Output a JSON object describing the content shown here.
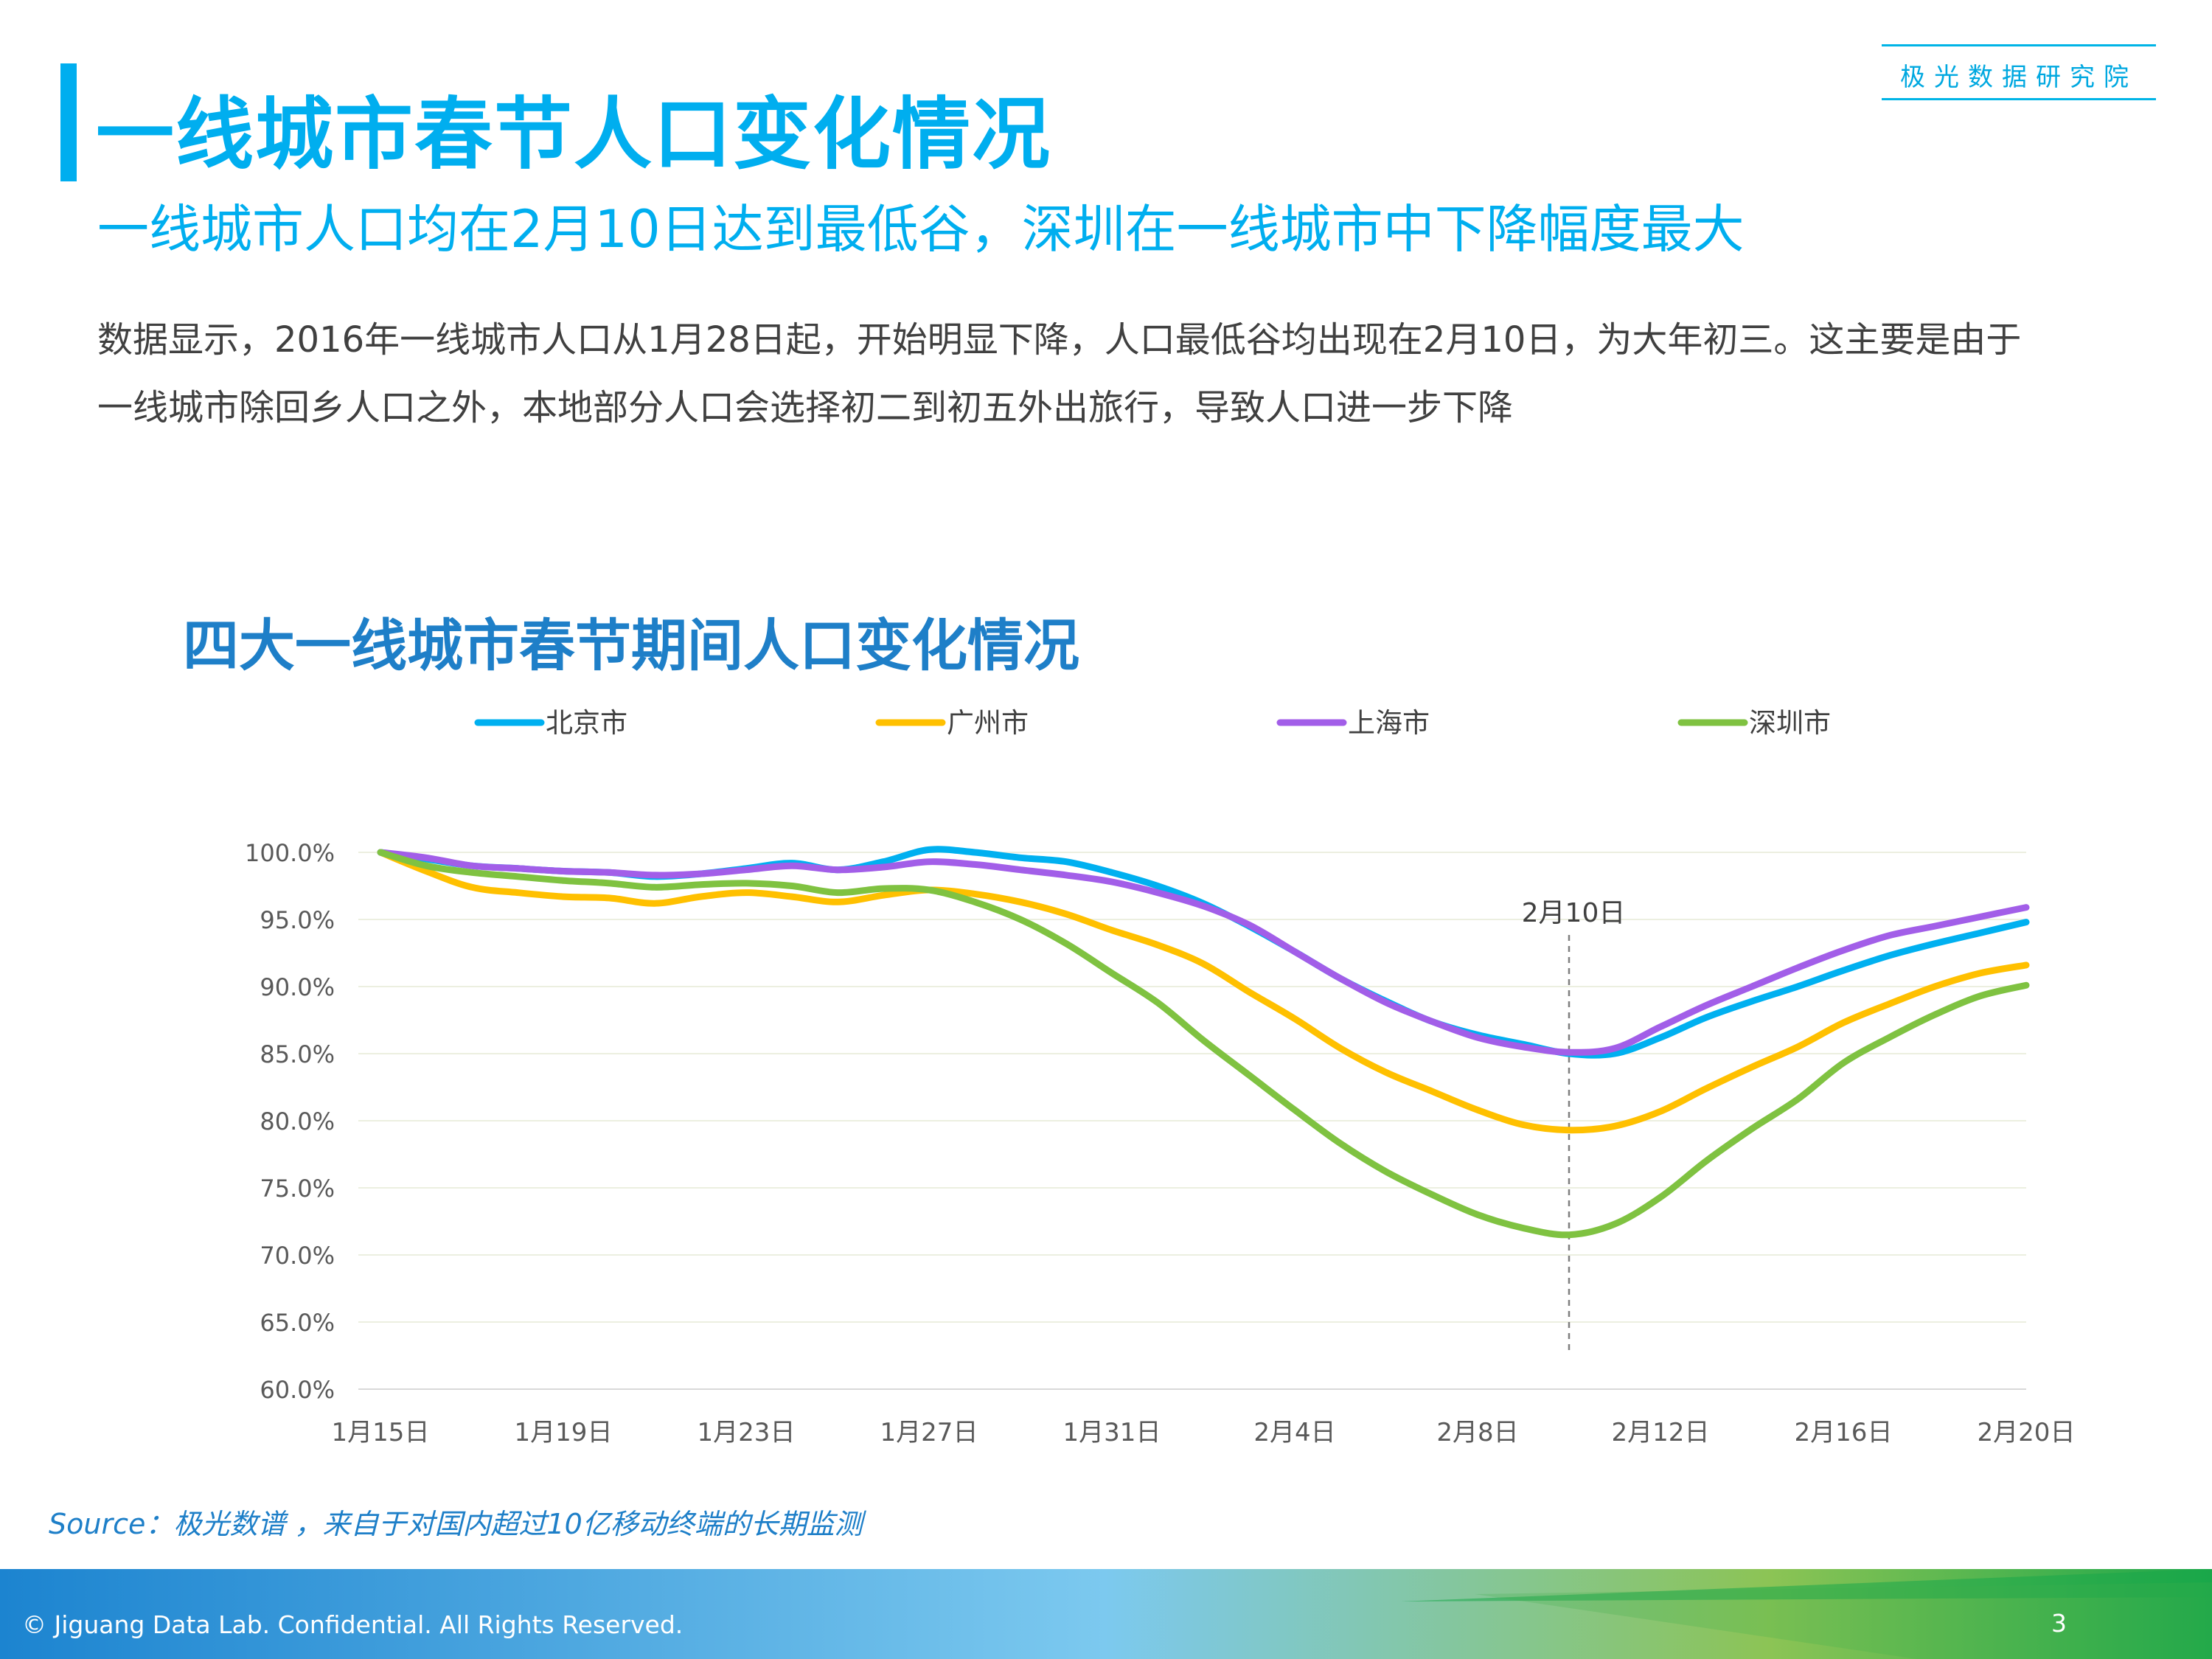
{
  "brand": "极光数据研究院",
  "title": "一线城市春节人口变化情况",
  "subtitle": "一线城市人口均在2月10日达到最低谷，深圳在一线城市中下降幅度最大",
  "body_lines": [
    "数据显示，2016年一线城市人口从1月28日起，开始明显下降，人口最低谷均出现在2月10日，为大年初三。这主要是由于",
    "一线城市除回乡人口之外，本地部分人口会选择初二到初五外出旅行，导致人口进一步下降"
  ],
  "source": "Source：极光数谱 ，来自于对国内超过10亿移动终端的长期监测",
  "footer": "© Jiguang Data Lab. Confidential. All Rights Reserved.",
  "page_number": "3",
  "colors": {
    "accent": "#00aeef",
    "chart_title": "#1e7fc8"
  },
  "chart_data": {
    "type": "line",
    "title": "四大一线城市春节期间人口变化情况",
    "x": [
      "1月15日",
      "1月16日",
      "1月17日",
      "1月18日",
      "1月19日",
      "1月20日",
      "1月21日",
      "1月22日",
      "1月23日",
      "1月24日",
      "1月25日",
      "1月26日",
      "1月27日",
      "1月28日",
      "1月29日",
      "1月30日",
      "1月31日",
      "2月1日",
      "2月2日",
      "2月3日",
      "2月4日",
      "2月5日",
      "2月6日",
      "2月7日",
      "2月8日",
      "2月9日",
      "2月10日",
      "2月11日",
      "2月12日",
      "2月13日",
      "2月14日",
      "2月15日",
      "2月16日",
      "2月17日",
      "2月18日",
      "2月19日",
      "2月20日"
    ],
    "x_tick_labels": [
      "1月15日",
      "1月19日",
      "1月23日",
      "1月27日",
      "1月31日",
      "2月4日",
      "2月8日",
      "2月12日",
      "2月16日",
      "2月20日"
    ],
    "y_tick_labels": [
      "100.0%",
      "95.0%",
      "90.0%",
      "85.0%",
      "80.0%",
      "75.0%",
      "70.0%",
      "65.0%",
      "60.0%"
    ],
    "ylim": [
      60,
      100
    ],
    "y_unit": "%",
    "grid": true,
    "legend_position": "top",
    "series": [
      {
        "name": "北京市",
        "color": "#00b0f0",
        "values": [
          100.0,
          99.5,
          99.0,
          98.8,
          98.6,
          98.5,
          98.2,
          98.4,
          98.8,
          99.2,
          98.7,
          99.3,
          100.2,
          100.0,
          99.6,
          99.3,
          98.5,
          97.5,
          96.2,
          94.5,
          92.6,
          90.6,
          88.9,
          87.4,
          86.4,
          85.7,
          85.0,
          85.0,
          86.2,
          87.7,
          88.9,
          90.0,
          91.2,
          92.3,
          93.2,
          94.0,
          94.8
        ]
      },
      {
        "name": "广州市",
        "color": "#ffc000",
        "values": [
          100.0,
          98.6,
          97.4,
          97.0,
          96.7,
          96.6,
          96.2,
          96.7,
          97.0,
          96.7,
          96.3,
          96.8,
          97.2,
          96.9,
          96.3,
          95.4,
          94.2,
          93.1,
          91.7,
          89.6,
          87.6,
          85.4,
          83.6,
          82.2,
          80.8,
          79.7,
          79.3,
          79.6,
          80.7,
          82.4,
          84.0,
          85.5,
          87.3,
          88.7,
          90.0,
          91.0,
          91.6
        ]
      },
      {
        "name": "上海市",
        "color": "#a25ee8",
        "values": [
          100.0,
          99.6,
          99.0,
          98.8,
          98.6,
          98.5,
          98.3,
          98.4,
          98.7,
          99.0,
          98.7,
          98.9,
          99.3,
          99.1,
          98.7,
          98.3,
          97.8,
          97.0,
          96.0,
          94.6,
          92.6,
          90.6,
          88.8,
          87.4,
          86.2,
          85.5,
          85.1,
          85.4,
          87.0,
          88.6,
          90.0,
          91.4,
          92.7,
          93.8,
          94.5,
          95.2,
          95.9
        ]
      },
      {
        "name": "深圳市",
        "color": "#7fc241",
        "values": [
          100.0,
          99.0,
          98.5,
          98.2,
          97.9,
          97.7,
          97.4,
          97.6,
          97.7,
          97.5,
          97.0,
          97.3,
          97.2,
          96.3,
          95.0,
          93.2,
          91.0,
          88.8,
          86.0,
          83.4,
          80.8,
          78.3,
          76.2,
          74.5,
          73.0,
          72.0,
          71.5,
          72.3,
          74.3,
          77.0,
          79.4,
          81.6,
          84.3,
          86.2,
          87.9,
          89.3,
          90.1
        ]
      }
    ],
    "annotation": {
      "x": "2月10日",
      "label": "2月10日"
    }
  }
}
